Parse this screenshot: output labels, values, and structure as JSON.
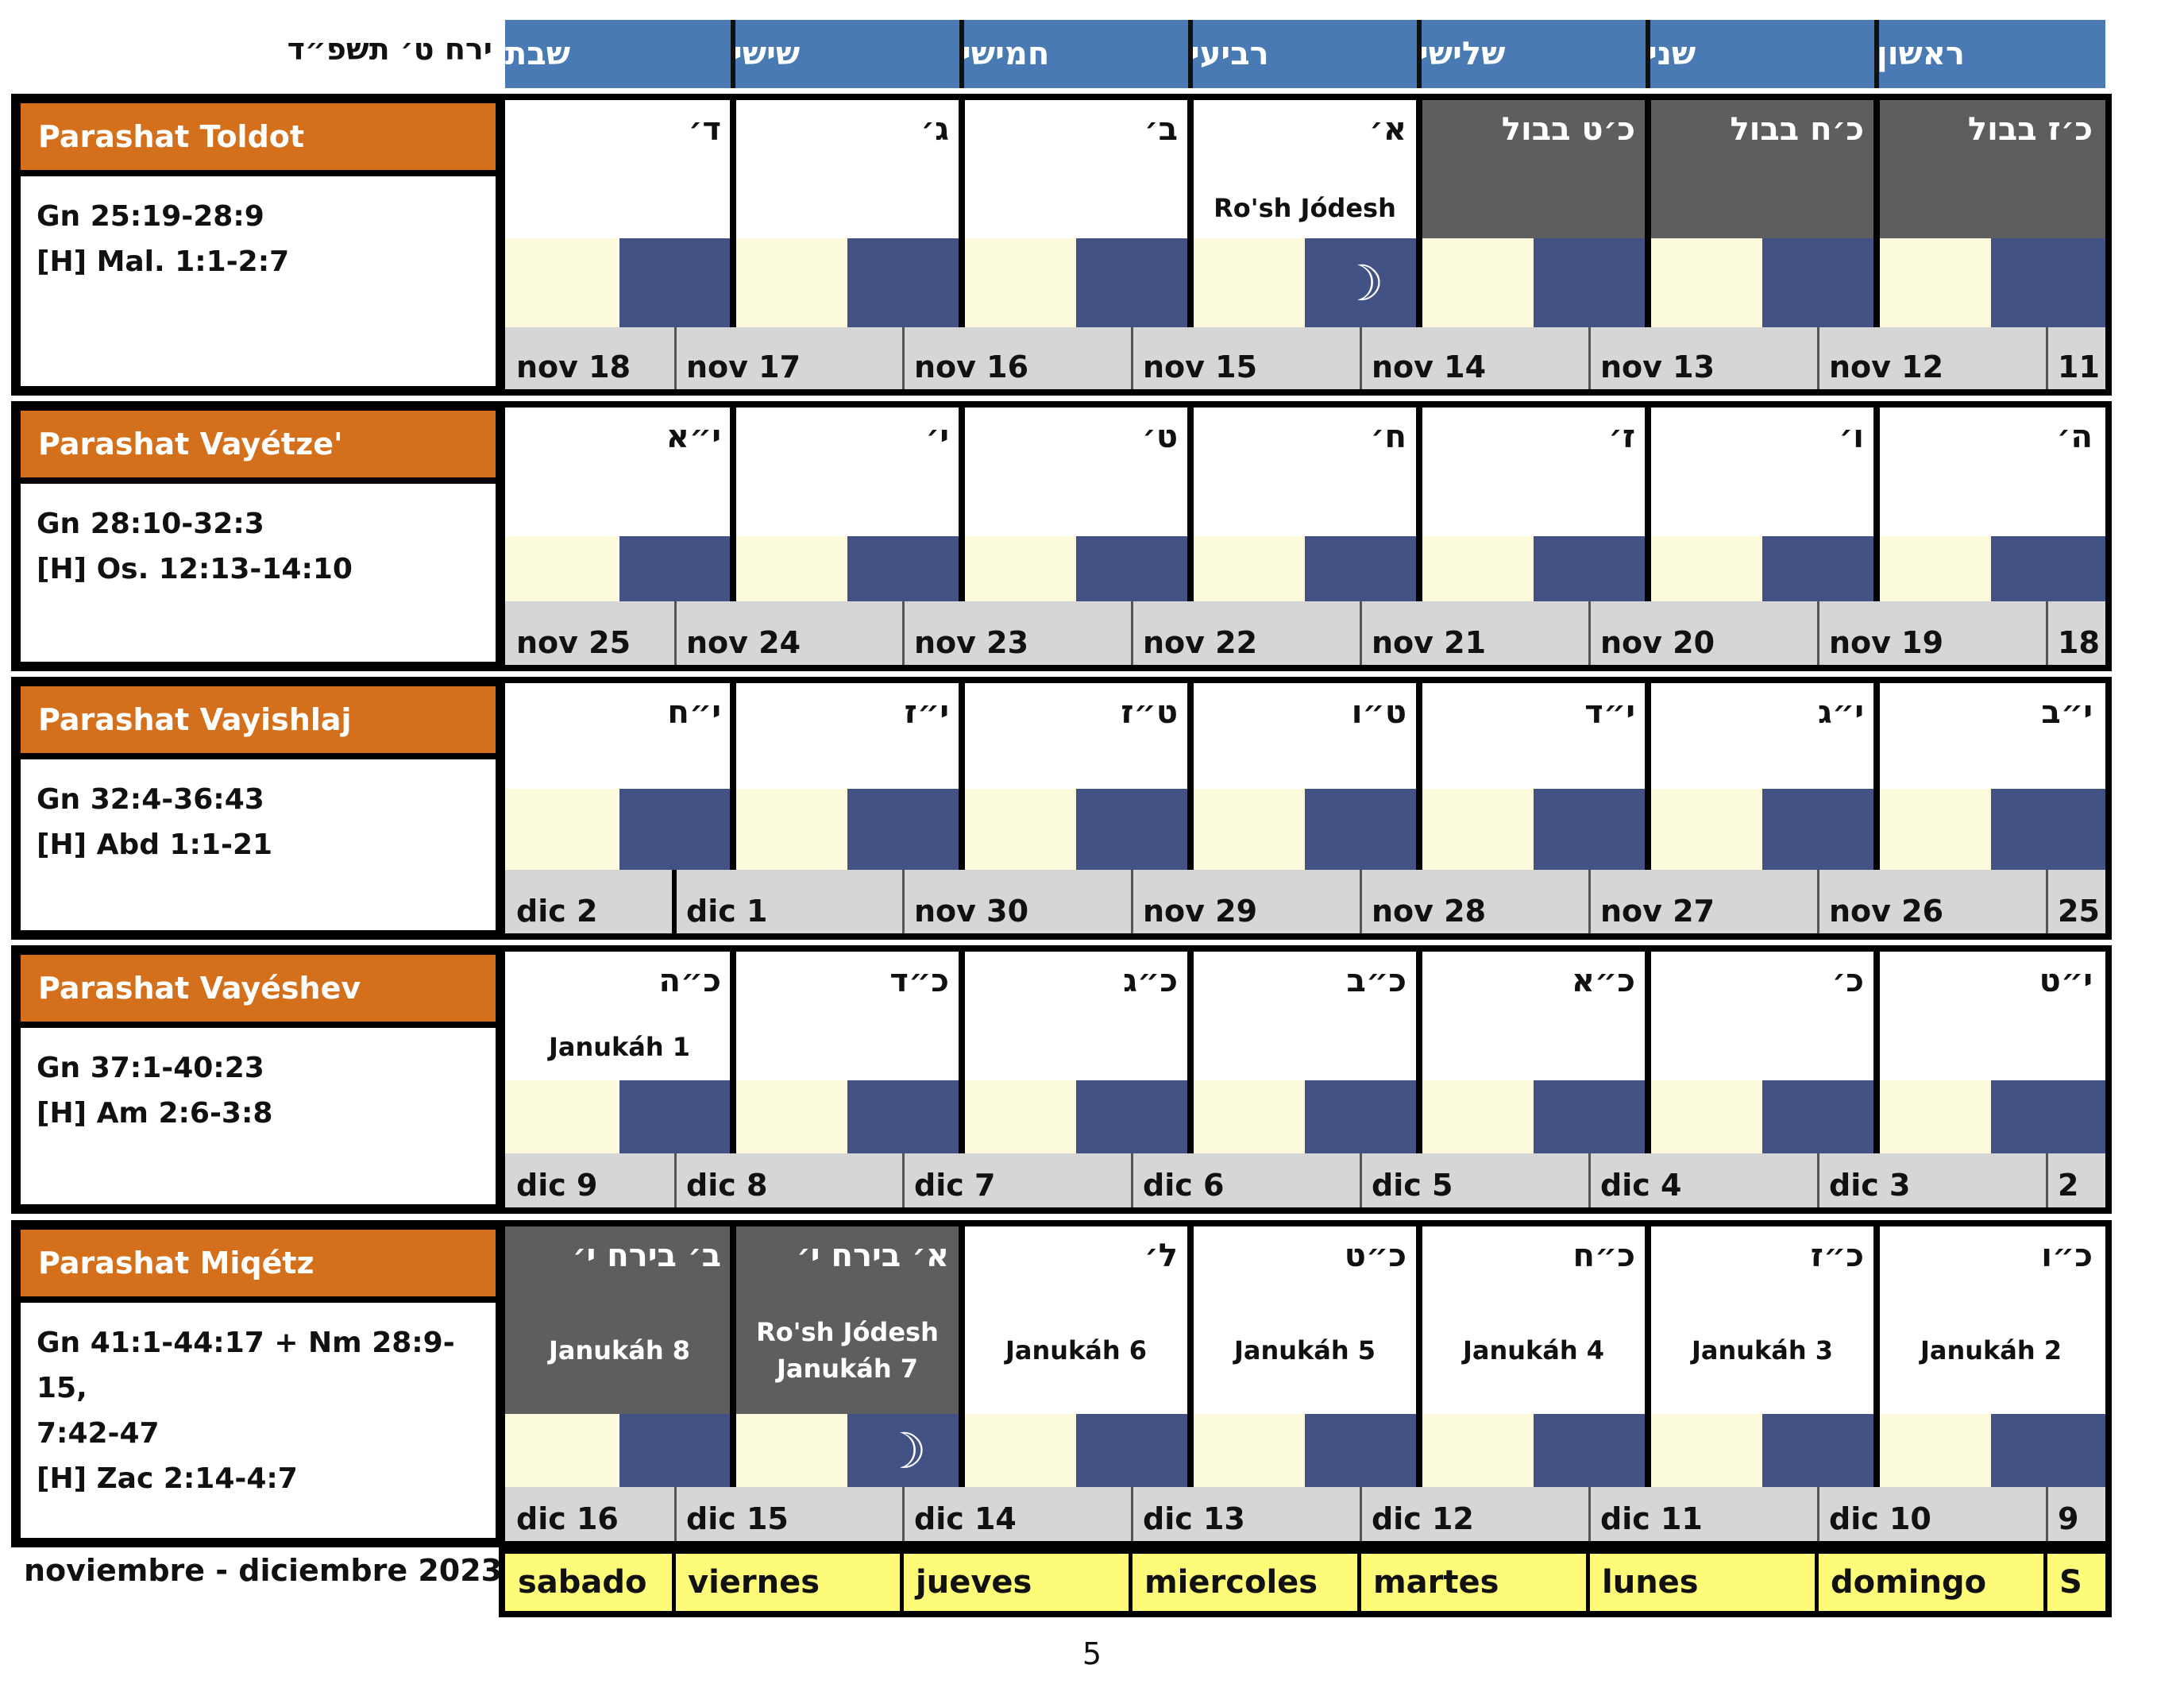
{
  "hebrew_month_title": "ירח ט׳ תשפ״ד",
  "weekday_headers_he": [
    "שבת",
    "שישי",
    "חמישי",
    "רביעי",
    "שלישי",
    "שני",
    "ראשון"
  ],
  "footer_title": "noviembre - diciembre 2023",
  "weekday_names_es": [
    "sabado",
    "viernes",
    "jueves",
    "miercoles",
    "martes",
    "lunes",
    "domingo",
    "S"
  ],
  "page_number": "5",
  "colors": {
    "header_blue": "#4a7ab4",
    "parasha_orange": "#d4701c",
    "past_month_gray": "#5e5e5e",
    "night_blue": "#435284",
    "day_cream": "#fdfbde",
    "date_gray": "#d6d6d6",
    "weekday_yellow": "#fdfb78"
  },
  "weeks": [
    {
      "parasha": "Parashat Toldot",
      "reading": "Gn 25:19-28:9\n[H] Mal. 1:1-2:7",
      "days": [
        {
          "he": "ד׳",
          "note": "",
          "dark": false,
          "moon": false
        },
        {
          "he": "ג׳",
          "note": "",
          "dark": false,
          "moon": false
        },
        {
          "he": "ב׳",
          "note": "",
          "dark": false,
          "moon": false
        },
        {
          "he": "א׳",
          "note": "Ro'sh Jódesh",
          "dark": false,
          "moon": true
        },
        {
          "he": "כ׳ט בבול",
          "note": "",
          "dark": true,
          "moon": false
        },
        {
          "he": "כ׳ח בבול",
          "note": "",
          "dark": true,
          "moon": false
        },
        {
          "he": "כ׳ז בבול",
          "note": "",
          "dark": true,
          "moon": false
        }
      ],
      "dates": [
        "nov 18",
        "nov 17",
        "nov 16",
        "nov 15",
        "nov 14",
        "nov 13",
        "nov 12",
        "11"
      ]
    },
    {
      "parasha": "Parashat Vayétze'",
      "reading": "Gn 28:10-32:3\n[H] Os. 12:13-14:10",
      "days": [
        {
          "he": "י״א",
          "note": "",
          "dark": false,
          "moon": false
        },
        {
          "he": "י׳",
          "note": "",
          "dark": false,
          "moon": false
        },
        {
          "he": "ט׳",
          "note": "",
          "dark": false,
          "moon": false
        },
        {
          "he": "ח׳",
          "note": "",
          "dark": false,
          "moon": false
        },
        {
          "he": "ז׳",
          "note": "",
          "dark": false,
          "moon": false
        },
        {
          "he": "ו׳",
          "note": "",
          "dark": false,
          "moon": false
        },
        {
          "he": "ה׳",
          "note": "",
          "dark": false,
          "moon": false
        }
      ],
      "dates": [
        "nov 25",
        "nov 24",
        "nov 23",
        "nov 22",
        "nov 21",
        "nov 20",
        "nov 19",
        "18"
      ]
    },
    {
      "parasha": "Parashat Vayishlaj",
      "reading": "Gn 32:4-36:43\n[H] Abd 1:1-21",
      "days": [
        {
          "he": "י״ח",
          "note": "",
          "dark": false,
          "moon": false
        },
        {
          "he": "י״ז",
          "note": "",
          "dark": false,
          "moon": false
        },
        {
          "he": "ט״ז",
          "note": "",
          "dark": false,
          "moon": false
        },
        {
          "he": "ט״ו",
          "note": "",
          "dark": false,
          "moon": false
        },
        {
          "he": "י״ד",
          "note": "",
          "dark": false,
          "moon": false
        },
        {
          "he": "י״ג",
          "note": "",
          "dark": false,
          "moon": false
        },
        {
          "he": "י״ב",
          "note": "",
          "dark": false,
          "moon": false
        }
      ],
      "dates": [
        "dic 2",
        "dic 1",
        "nov 30",
        "nov 29",
        "nov 28",
        "nov 27",
        "nov 26",
        "25"
      ]
    },
    {
      "parasha": "Parashat Vayéshev",
      "reading": "Gn 37:1-40:23\n[H] Am 2:6-3:8",
      "days": [
        {
          "he": "כ״ה",
          "note": "Janukáh 1",
          "dark": false,
          "moon": false
        },
        {
          "he": "כ״ד",
          "note": "",
          "dark": false,
          "moon": false
        },
        {
          "he": "כ״ג",
          "note": "",
          "dark": false,
          "moon": false
        },
        {
          "he": "כ״ב",
          "note": "",
          "dark": false,
          "moon": false
        },
        {
          "he": "כ״א",
          "note": "",
          "dark": false,
          "moon": false
        },
        {
          "he": "כ׳",
          "note": "",
          "dark": false,
          "moon": false
        },
        {
          "he": "י״ט",
          "note": "",
          "dark": false,
          "moon": false
        }
      ],
      "dates": [
        "dic 9",
        "dic 8",
        "dic 7",
        "dic 6",
        "dic 5",
        "dic 4",
        "dic 3",
        "2"
      ]
    },
    {
      "parasha": "Parashat Miqétz",
      "reading": "Gn 41:1-44:17 + Nm 28:9-15,\n7:42-47\n[H] Zac 2:14-4:7",
      "days": [
        {
          "he": "ב׳ בירח י׳",
          "note": "Janukáh 8",
          "dark": true,
          "moon": false
        },
        {
          "he": "א׳ בירח י׳",
          "note": "Ro'sh Jódesh\nJanukáh 7",
          "dark": true,
          "moon": true
        },
        {
          "he": "ל׳",
          "note": "Janukáh 6",
          "dark": false,
          "moon": false
        },
        {
          "he": "כ״ט",
          "note": "Janukáh 5",
          "dark": false,
          "moon": false
        },
        {
          "he": "כ״ח",
          "note": "Janukáh 4",
          "dark": false,
          "moon": false
        },
        {
          "he": "כ״ז",
          "note": "Janukáh 3",
          "dark": false,
          "moon": false
        },
        {
          "he": "כ״ו",
          "note": "Janukáh 2",
          "dark": false,
          "moon": false
        }
      ],
      "dates": [
        "dic 16",
        "dic 15",
        "dic 14",
        "dic 13",
        "dic 12",
        "dic 11",
        "dic 10",
        "9"
      ]
    }
  ]
}
